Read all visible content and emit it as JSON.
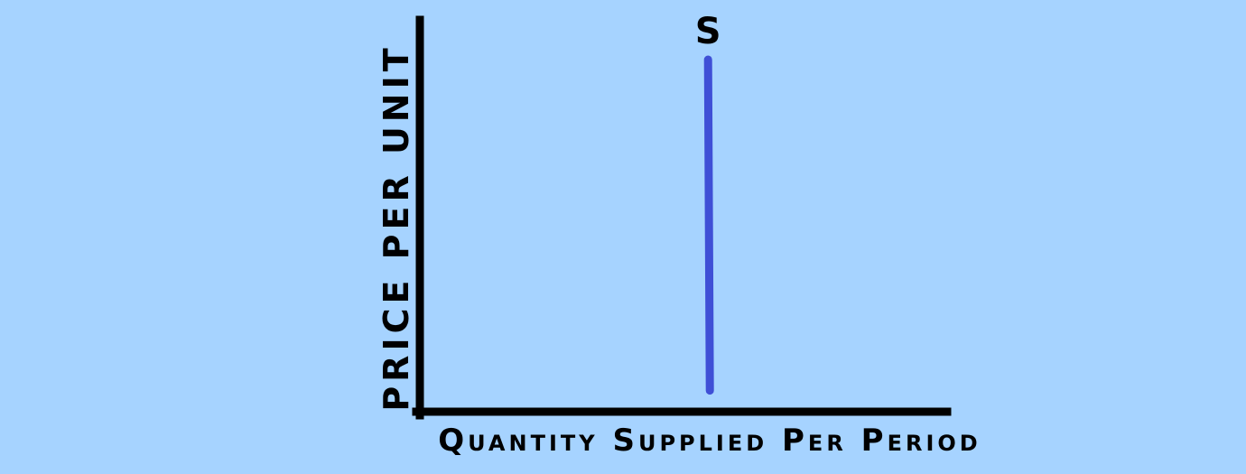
{
  "background_color": "#a6d3ff",
  "axis_color": "#000000",
  "chart_data": {
    "type": "line",
    "title": "",
    "xlabel": "Quantity Supplied Per Period",
    "ylabel": "Price Per Unit",
    "grid": false,
    "legend": "none",
    "xlim": [
      0,
      1
    ],
    "ylim": [
      0,
      1
    ],
    "series": [
      {
        "name": "S",
        "color": "#3f4fd6",
        "points": [
          [
            0.55,
            0.06
          ],
          [
            0.55,
            1.0
          ]
        ]
      }
    ]
  }
}
